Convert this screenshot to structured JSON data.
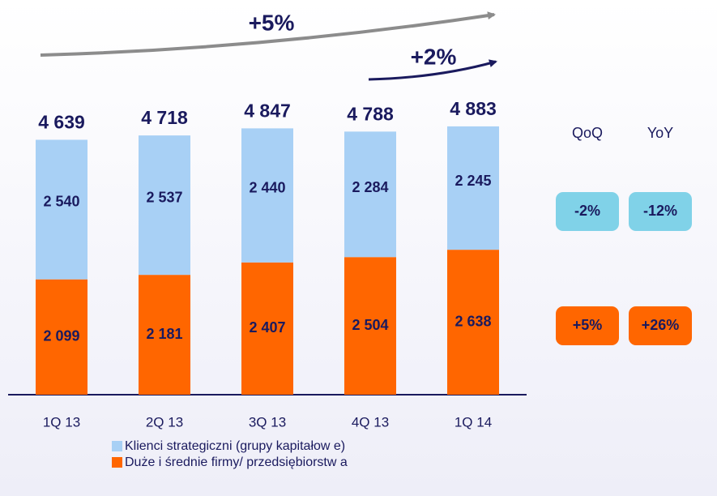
{
  "chart_data": {
    "type": "stacked-bar",
    "categories": [
      "1Q 13",
      "2Q 13",
      "3Q 13",
      "4Q 13",
      "1Q 14"
    ],
    "series": [
      {
        "name": "Klienci strategiczni (grupy kapitałow e)",
        "color": "#a8d0f5",
        "values": [
          2540,
          2537,
          2440,
          2284,
          2245
        ],
        "value_labels": [
          "2 540",
          "2 537",
          "2 440",
          "2 284",
          "2 245"
        ]
      },
      {
        "name": "Duże i średnie firmy/ przedsiębiorstw a",
        "color": "#ff6600",
        "values": [
          2099,
          2181,
          2407,
          2504,
          2638
        ],
        "value_labels": [
          "2 099",
          "2 181",
          "2 407",
          "2 504",
          "2 638"
        ]
      }
    ],
    "totals": [
      4639,
      4718,
      4847,
      4788,
      4883
    ],
    "total_labels": [
      "4 639",
      "4 718",
      "4 847",
      "4 788",
      "4 883"
    ],
    "ylim": [
      0,
      5000
    ],
    "annotations": [
      "+5%",
      "+2%"
    ],
    "change_table": {
      "columns": [
        "QoQ",
        "YoY"
      ],
      "rows": [
        [
          "-2%",
          "-12%"
        ],
        [
          "+5%",
          "+26%"
        ]
      ]
    }
  }
}
